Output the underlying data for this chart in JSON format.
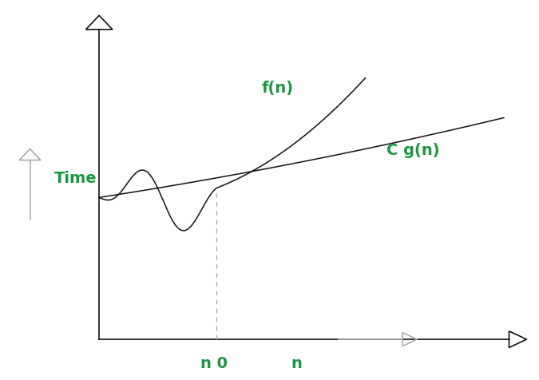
{
  "background_color": "#ffffff",
  "curve_color": "#111111",
  "label_color": "#1a9641",
  "fn_label": "f(n)",
  "cgn_label": "C g(n)",
  "time_label": "Time",
  "n0_label": "n 0",
  "n_label": "n",
  "dashed_color": "#aaaaaa",
  "axis_color": "#111111",
  "secondary_axis_color": "#aaaaaa",
  "label_fontsize": 14,
  "axis_lw": 1.2
}
